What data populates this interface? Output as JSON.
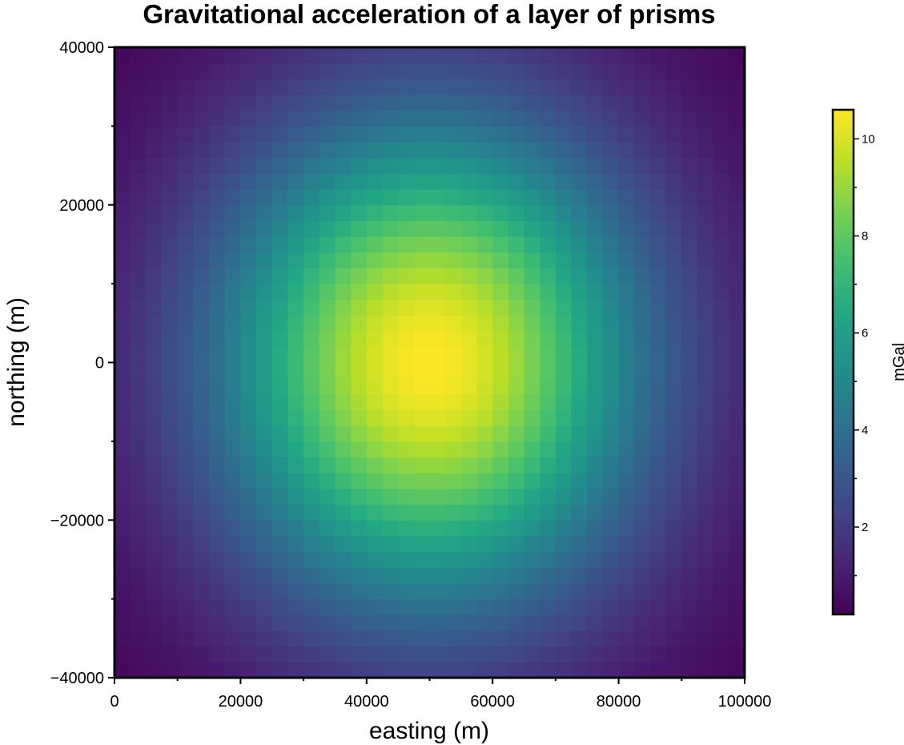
{
  "chart_data": {
    "type": "heatmap",
    "title": "Gravitational acceleration of a layer of prisms",
    "xlabel": "easting (m)",
    "ylabel": "northing (m)",
    "colorbar_label": "mGal",
    "colormap": "viridis",
    "xlim": [
      0,
      100000
    ],
    "ylim": [
      -40000,
      40000
    ],
    "xticks": [
      "0",
      "20000",
      "40000",
      "60000",
      "80000",
      "100000"
    ],
    "yticks": [
      "−40000",
      "−20000",
      "0",
      "20000",
      "40000"
    ],
    "colorbar_range": [
      0.2,
      10.6
    ],
    "colorbar_ticks": [
      "2",
      "4",
      "6",
      "8",
      "10"
    ],
    "grid": {
      "nx": 40,
      "ny": 40,
      "peak_x": 50000,
      "peak_y": 0,
      "max": 10.6,
      "min": 0.2
    }
  }
}
